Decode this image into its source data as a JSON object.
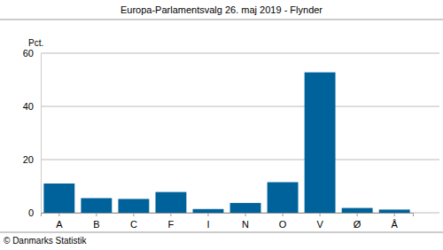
{
  "chart_data": {
    "type": "bar",
    "title": "Europa-Parlamentsvalg 26. maj 2019 - Flynder",
    "y_label": "Pct.",
    "annotations": [
      "© Danmarks Statistik"
    ],
    "categories": [
      "A",
      "B",
      "C",
      "F",
      "I",
      "N",
      "O",
      "V",
      "Ø",
      "Å"
    ],
    "values": [
      11.0,
      5.5,
      5.2,
      7.8,
      1.4,
      3.7,
      11.5,
      52.8,
      1.8,
      1.2
    ],
    "color": "#00629b",
    "ylim": [
      0,
      60
    ],
    "yticks": [
      0,
      20,
      40,
      60
    ],
    "grid": true
  }
}
